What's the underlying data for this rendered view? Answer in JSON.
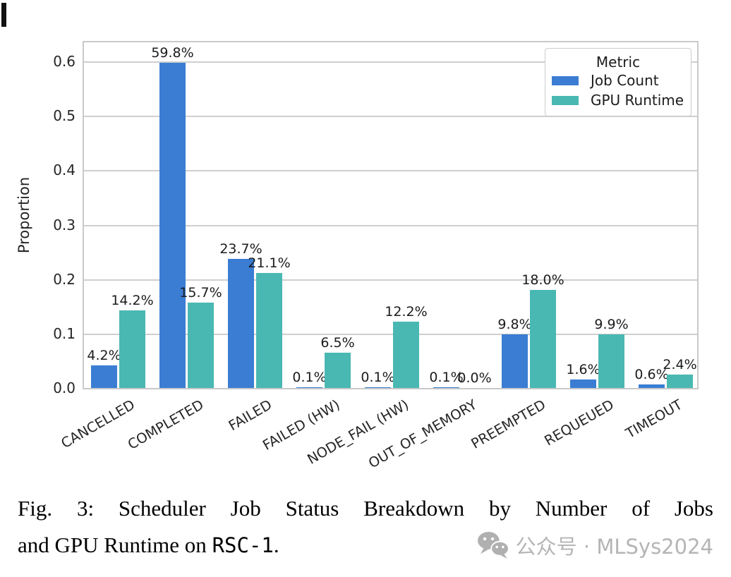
{
  "chart_data": {
    "type": "bar",
    "title": "",
    "xlabel": "",
    "ylabel": "Proportion",
    "ylim": [
      0,
      0.635
    ],
    "yticks": [
      0.0,
      0.1,
      0.2,
      0.3,
      0.4,
      0.5,
      0.6
    ],
    "grid": "horizontal",
    "legend": {
      "title": "Metric",
      "position": "upper right"
    },
    "categories": [
      "CANCELLED",
      "COMPLETED",
      "FAILED",
      "FAILED (HW)",
      "NODE_FAIL (HW)",
      "OUT_OF_MEMORY",
      "PREEMPTED",
      "REQUEUED",
      "TIMEOUT"
    ],
    "series": [
      {
        "name": "Job Count",
        "color": "#3a7dd3",
        "values": [
          0.042,
          0.598,
          0.237,
          0.001,
          0.001,
          0.001,
          0.098,
          0.016,
          0.006
        ],
        "labels": [
          "4.2%",
          "59.8%",
          "23.7%",
          "0.1%",
          "0.1%",
          "0.1%",
          "9.8%",
          "1.6%",
          "0.6%"
        ]
      },
      {
        "name": "GPU Runtime",
        "color": "#4ab8b2",
        "values": [
          0.142,
          0.157,
          0.211,
          0.065,
          0.122,
          0.0,
          0.18,
          0.099,
          0.024
        ],
        "labels": [
          "14.2%",
          "15.7%",
          "21.1%",
          "6.5%",
          "12.2%",
          "0.0%",
          "18.0%",
          "9.9%",
          "2.4%"
        ]
      }
    ]
  },
  "caption": {
    "line1": "Fig. 3: Scheduler Job Status Breakdown by Number of Jobs",
    "line2_prefix": "and GPU Runtime on ",
    "line2_code": "RSC-1",
    "line2_suffix": "."
  },
  "watermark": {
    "icon": "wechat-icon",
    "text": "公众号 · MLSys2024",
    "color": "#b5b5b5"
  }
}
